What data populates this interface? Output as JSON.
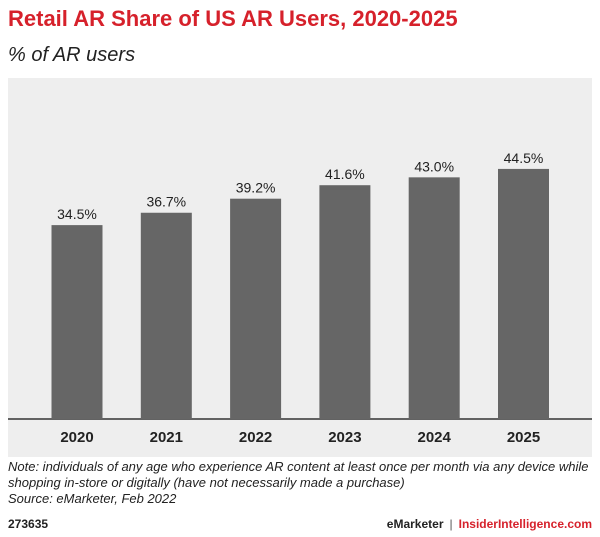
{
  "header": {
    "title": "Retail AR Share of US AR Users, 2020-2025",
    "subtitle": "% of AR users"
  },
  "chart_data": {
    "type": "bar",
    "title": "Retail AR Share of US AR Users, 2020-2025",
    "subtitle": "% of AR users",
    "categories": [
      "2020",
      "2021",
      "2022",
      "2023",
      "2024",
      "2025"
    ],
    "values": [
      34.5,
      36.7,
      39.2,
      41.6,
      43.0,
      44.5
    ],
    "value_labels": [
      "34.5%",
      "36.7%",
      "39.2%",
      "41.6%",
      "43.0%",
      "44.5%"
    ],
    "xlabel": "",
    "ylabel": "",
    "ylim": [
      0,
      50
    ],
    "grid": false,
    "bar_color": "#666666",
    "background_color": "#eeeeee"
  },
  "footer": {
    "note": "Note: individuals of any age who experience AR content at least once per month via any device while shopping in-store or digitally (have not necessarily made a purchase)",
    "source": "Source: eMarketer, Feb 2022",
    "chart_id": "273635",
    "brand_primary": "eMarketer",
    "brand_separator": "|",
    "brand_secondary": "InsiderIntelligence.com"
  }
}
